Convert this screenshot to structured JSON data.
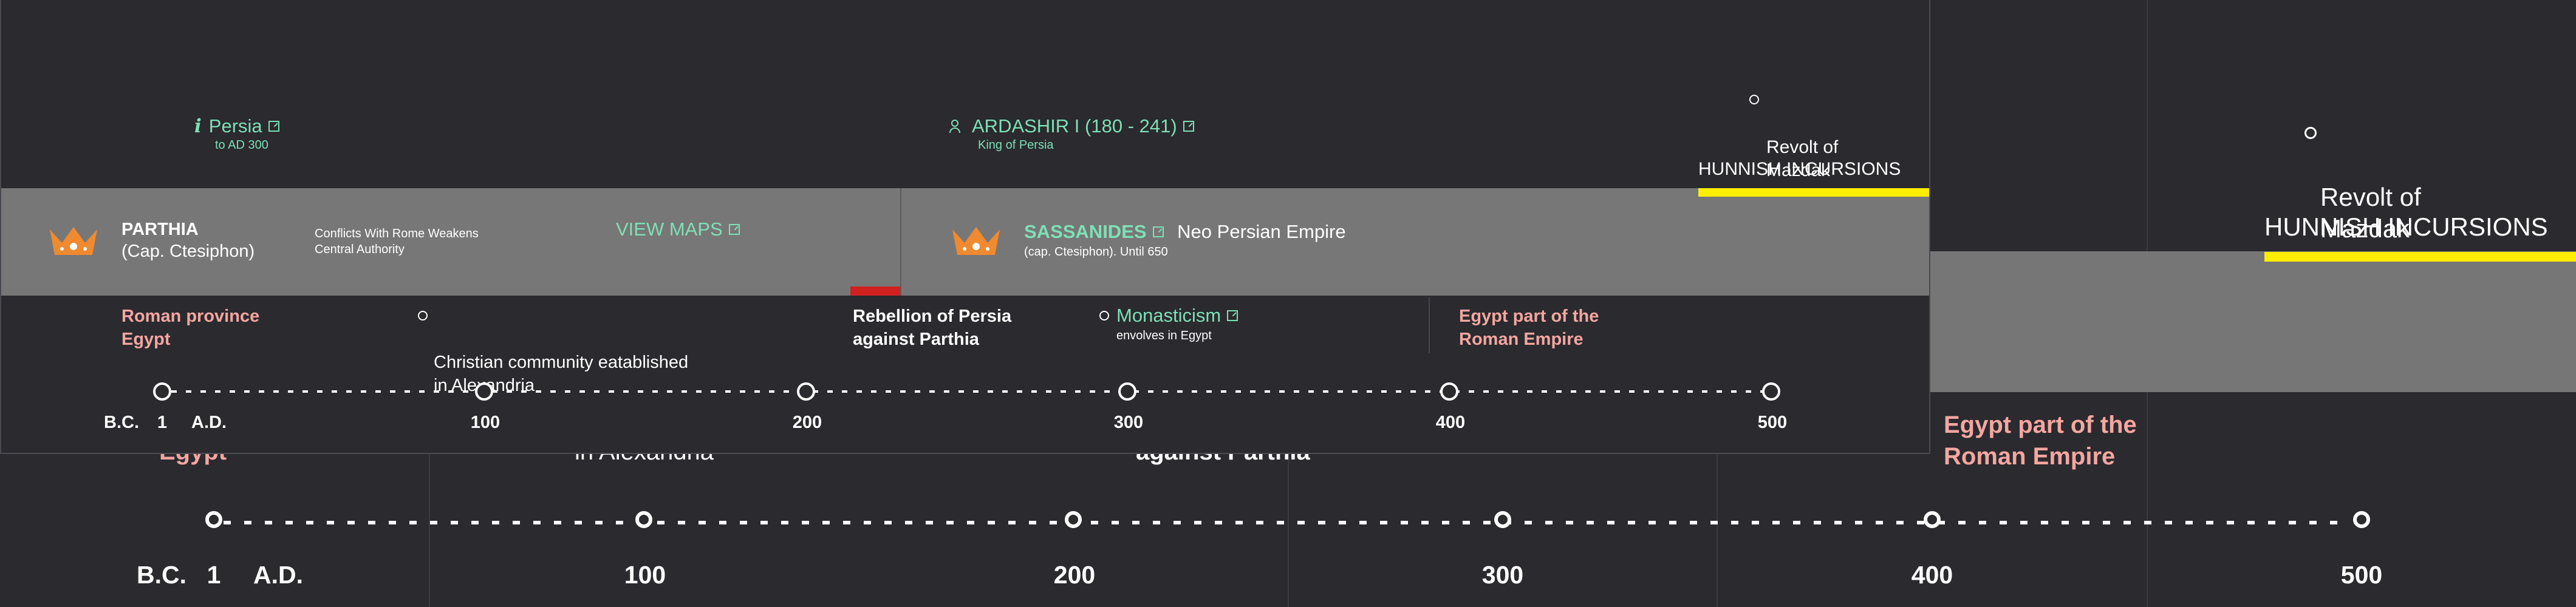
{
  "background": {
    "event_right_revolt": "Revolt of\nMazdak",
    "event_right_hunnish": "HUNNISH INCURSIONS",
    "event_egypt_part": "Egypt part of the\nRoman Empire",
    "cut_egypt": "Egypt",
    "cut_alexandria": "in Alexandria",
    "cut_parthia": "against Parthia",
    "axis": {
      "bc": "B.C.",
      "one": "1",
      "ad": "A.D.",
      "ticks": [
        "100",
        "200",
        "300",
        "400",
        "500"
      ]
    }
  },
  "timeline": {
    "top_events": {
      "persia_label": "Persia",
      "persia_sub": "to AD 300",
      "persia_info_icon": "i",
      "ardashir_label": "ARDASHIR I (180 - 241)",
      "ardashir_sub": "King of Persia",
      "revolt_label": "Revolt of\nMazdak",
      "hunnish_label": "HUNNISH INCURSIONS"
    },
    "parthia": {
      "name": "PARTHIA",
      "capital": "(Cap. Ctesiphon)",
      "note": "Conflicts With Rome Weakens\nCentral Authority",
      "view_maps": "VIEW MAPS"
    },
    "sassanides": {
      "name": "SASSANIDES",
      "desc": "Neo Persian Empire",
      "sub": "(cap. Ctesiphon). Until 650"
    },
    "bottom_events": {
      "roman_egypt": "Roman province\nEgypt",
      "christian": "Christian community eatablished\nin Alexandria",
      "rebellion": "Rebellion of Persia\nagainst Parthia",
      "monasticism": "Monasticism",
      "monasticism_sub": "envolves in Egypt",
      "egypt_part": "Egypt part of the\nRoman Empire"
    },
    "axis": {
      "bc": "B.C.",
      "one": "1",
      "ad": "A.D.",
      "ticks": [
        "100",
        "200",
        "300",
        "400",
        "500"
      ]
    },
    "colors": {
      "background": "#2a2a2f",
      "band": "#777777",
      "mint": "#7ee0b5",
      "salmon": "#f4a6a0",
      "yellow": "#ffee00",
      "red_marker": "#d02020",
      "crown": "#f08a30"
    }
  }
}
